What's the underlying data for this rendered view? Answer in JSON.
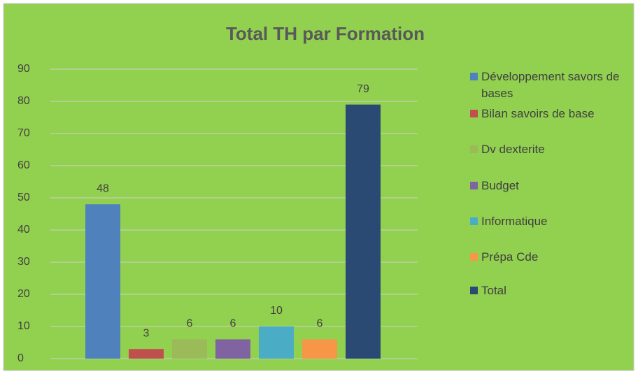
{
  "chart_data": {
    "type": "bar",
    "title": "Total TH par Formation",
    "series": [
      {
        "name": "Développement savors de bases",
        "color": "#4f81bd",
        "values": [
          48
        ]
      },
      {
        "name": "Bilan savoirs de base",
        "color": "#c0504d",
        "values": [
          3
        ]
      },
      {
        "name": "Dv dexterite",
        "color": "#9bbb59",
        "values": [
          6
        ]
      },
      {
        "name": "Budget",
        "color": "#8064a2",
        "values": [
          6
        ]
      },
      {
        "name": "Informatique",
        "color": "#4bacc6",
        "values": [
          10
        ]
      },
      {
        "name": "Prépa Cde",
        "color": "#f79646",
        "values": [
          6
        ]
      },
      {
        "name": "Total",
        "color": "#2a4a74",
        "values": [
          79
        ]
      }
    ],
    "ylim": [
      0,
      90
    ],
    "yticks": [
      0,
      10,
      20,
      30,
      40,
      50,
      60,
      70,
      80,
      90
    ],
    "grid": true,
    "legend": "right"
  }
}
